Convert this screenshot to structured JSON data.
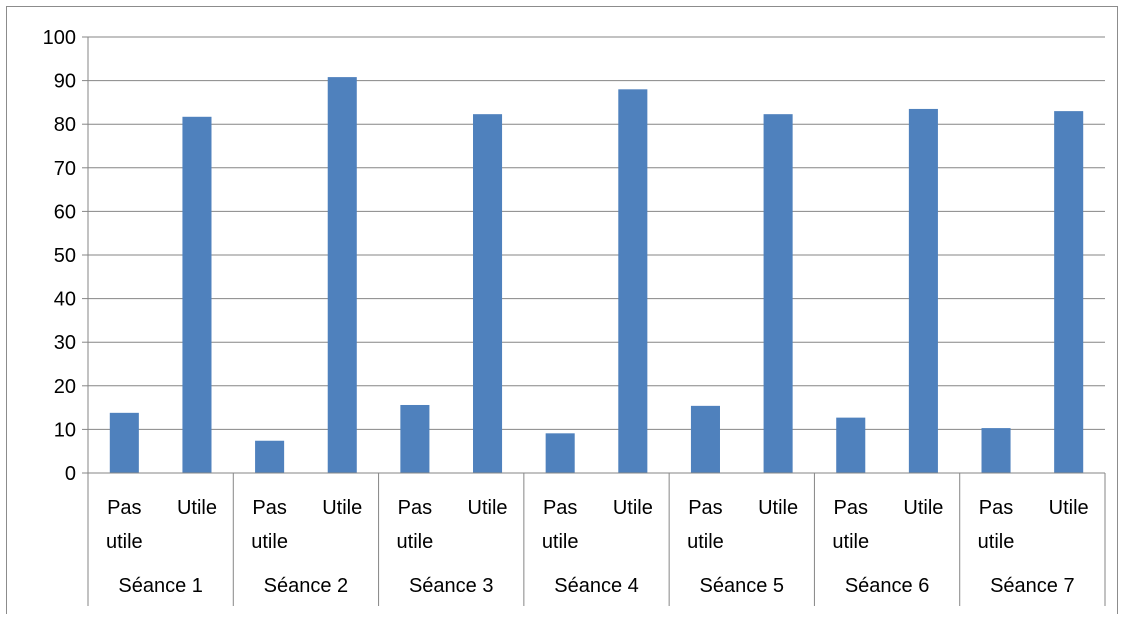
{
  "chart_data": {
    "type": "bar",
    "groups": [
      "Séance 1",
      "Séance 2",
      "Séance 3",
      "Séance 4",
      "Séance 5",
      "Séance 6",
      "Séance 7"
    ],
    "subcategories": [
      {
        "line1": "Pas",
        "line2": "utile"
      },
      {
        "line1": "Utile",
        "line2": ""
      }
    ],
    "series": [
      {
        "values": [
          13.8,
          81.7,
          7.4,
          90.8,
          15.6,
          82.3,
          9.1,
          88.0,
          15.4,
          82.3,
          12.7,
          83.5,
          10.3,
          83.0
        ]
      }
    ],
    "title": "",
    "xlabel": "",
    "ylabel": "",
    "ylim": [
      0,
      100
    ],
    "yticks": [
      "0",
      "10",
      "20",
      "30",
      "40",
      "50",
      "60",
      "70",
      "80",
      "90",
      "100"
    ],
    "grid": true,
    "legend": "none",
    "colors": {
      "bar": "#4f81bd",
      "grid": "#868686",
      "axis": "#868686",
      "frame": "#8c8c8c"
    }
  }
}
